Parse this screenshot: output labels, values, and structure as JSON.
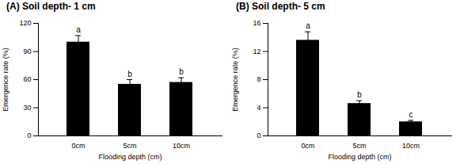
{
  "chart_data": [
    {
      "type": "bar",
      "title": "(A) Soil depth- 1 cm",
      "x_label": "Flooding depth (cm)",
      "y_label": "Emergence rate (%)",
      "categories": [
        "0cm",
        "5cm",
        "10cm"
      ],
      "values": [
        100,
        55,
        57
      ],
      "errors": [
        7,
        5,
        5
      ],
      "annotations": [
        "a",
        "b",
        "b"
      ],
      "color": "#000000",
      "ylim": [
        0,
        120
      ],
      "yticks": [
        0,
        30,
        60,
        90,
        120
      ],
      "grid": false
    },
    {
      "type": "bar",
      "title": "(B) Soil depth- 5 cm",
      "x_label": "Flooding depth (cm)",
      "y_label": "Emergence rate (%)",
      "categories": [
        "0cm",
        "5cm",
        "10cm"
      ],
      "values": [
        13.6,
        4.6,
        2.0
      ],
      "errors": [
        1.2,
        0.4,
        0.2
      ],
      "annotations": [
        "a",
        "b",
        "c"
      ],
      "color": "#000000",
      "ylim": [
        0,
        16
      ],
      "yticks": [
        0,
        4,
        8,
        12,
        16
      ],
      "grid": false
    }
  ]
}
